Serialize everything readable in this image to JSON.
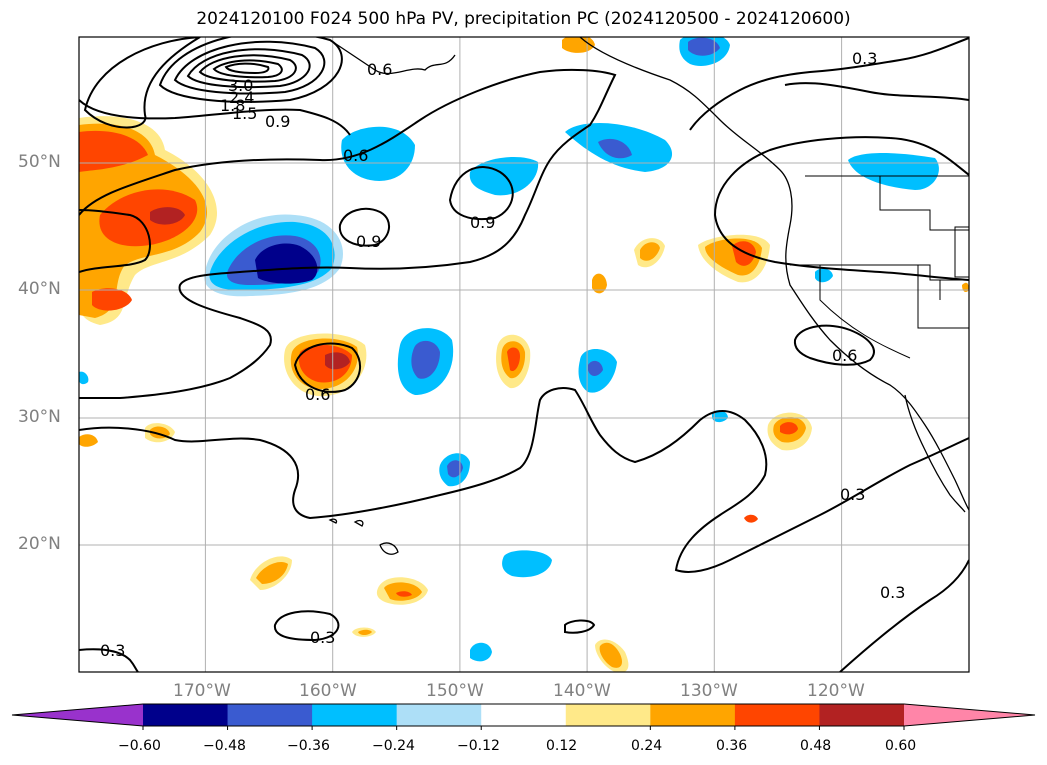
{
  "title": "2024120100 F024 500 hPa PV, precipitation PC (2024120500 - 2024120600)",
  "map": {
    "lat_labels": [
      {
        "text": "50°N",
        "lat": 50
      },
      {
        "text": "40°N",
        "lat": 40
      },
      {
        "text": "30°N",
        "lat": 30
      },
      {
        "text": "20°N",
        "lat": 20
      }
    ],
    "lon_labels": [
      {
        "text": "170°W",
        "lon": -170
      },
      {
        "text": "160°W",
        "lon": -160
      },
      {
        "text": "150°W",
        "lon": -150
      },
      {
        "text": "140°W",
        "lon": -140
      },
      {
        "text": "130°W",
        "lon": -130
      },
      {
        "text": "120°W",
        "lon": -120
      }
    ],
    "extent": {
      "lon": [
        -180,
        -110
      ],
      "lat": [
        10,
        60
      ]
    },
    "contour_labels": [
      "3.0",
      "2.4",
      "1.8",
      "1.5",
      "0.9",
      "0.6",
      "0.9",
      "0.9",
      "0.3",
      "0.6",
      "0.6",
      "0.3",
      "0.3",
      "0.3",
      "0.3",
      "0.6"
    ]
  },
  "colorbar": {
    "ticks": [
      "−0.60",
      "−0.48",
      "−0.36",
      "−0.24",
      "−0.12",
      "0.12",
      "0.24",
      "0.36",
      "0.48",
      "0.60"
    ],
    "colors": [
      "#9932CC",
      "#00008B",
      "#3A5BD0",
      "#00BFFF",
      "#ADDFF7",
      "#FFFFFF",
      "#FFE989",
      "#FFA500",
      "#FF4500",
      "#B22222",
      "#FF85A8"
    ]
  }
}
